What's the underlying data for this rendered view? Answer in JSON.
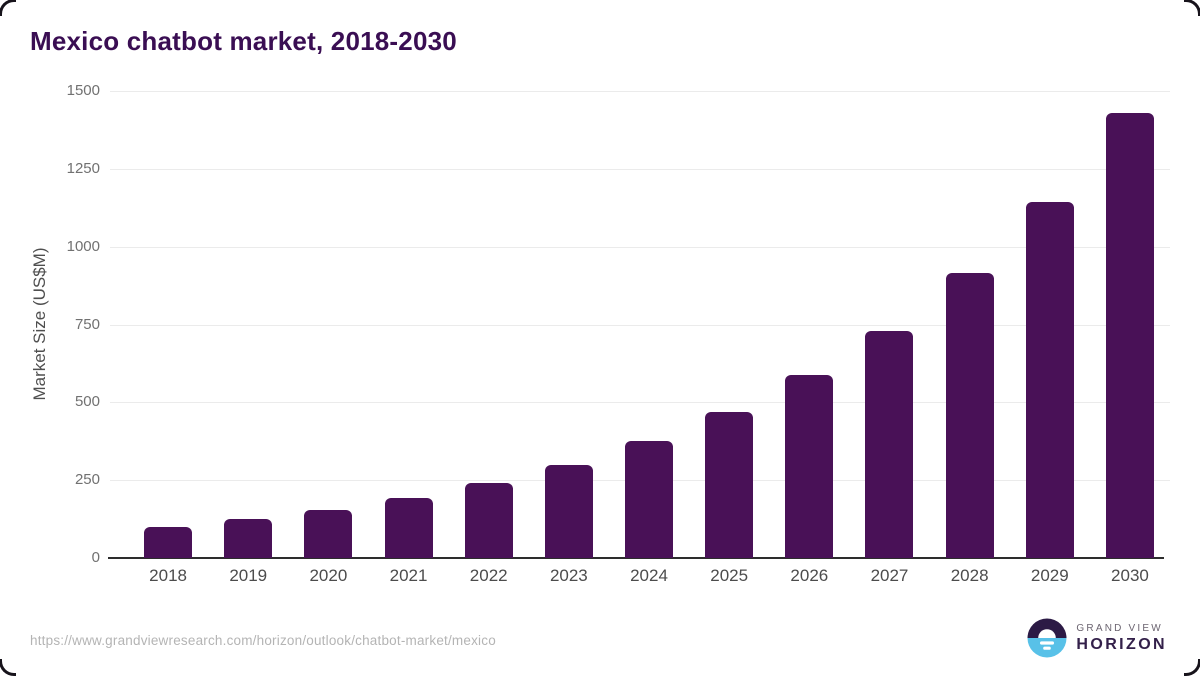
{
  "page": {
    "title": "Mexico chatbot market, 2018-2030",
    "source_url": "https://www.grandviewresearch.com/horizon/outlook/chatbot-market/mexico",
    "logo": {
      "icon": "grand-view-horizon-sunrise-icon",
      "line1": "GRAND VIEW",
      "line2": "HORIZON"
    }
  },
  "chart_data": {
    "type": "bar",
    "title": "Mexico chatbot market, 2018-2030",
    "xlabel": "",
    "ylabel": "Market Size (US$M)",
    "categories": [
      "2018",
      "2019",
      "2020",
      "2021",
      "2022",
      "2023",
      "2024",
      "2025",
      "2026",
      "2027",
      "2028",
      "2029",
      "2030"
    ],
    "values": [
      100,
      125,
      155,
      192,
      240,
      300,
      375,
      468,
      587,
      730,
      915,
      1145,
      1430
    ],
    "ylim": [
      0,
      1500
    ],
    "yticks": [
      0,
      250,
      500,
      750,
      1000,
      1250,
      1500
    ],
    "grid": "horizontal-light",
    "legend_position": "none",
    "bar_color": "#491157"
  },
  "colors": {
    "bar": "#491157",
    "title_text": "#3a0e53",
    "gridline": "#ebebeb",
    "axis_line": "#2d2d2d",
    "y_tick_text": "#717171",
    "x_tick_text": "#4c4c4c",
    "url_text": "#b4b4b4",
    "logo_blue": "#58c1e8",
    "logo_purple": "#2c1a45",
    "background": "#ffffff"
  }
}
